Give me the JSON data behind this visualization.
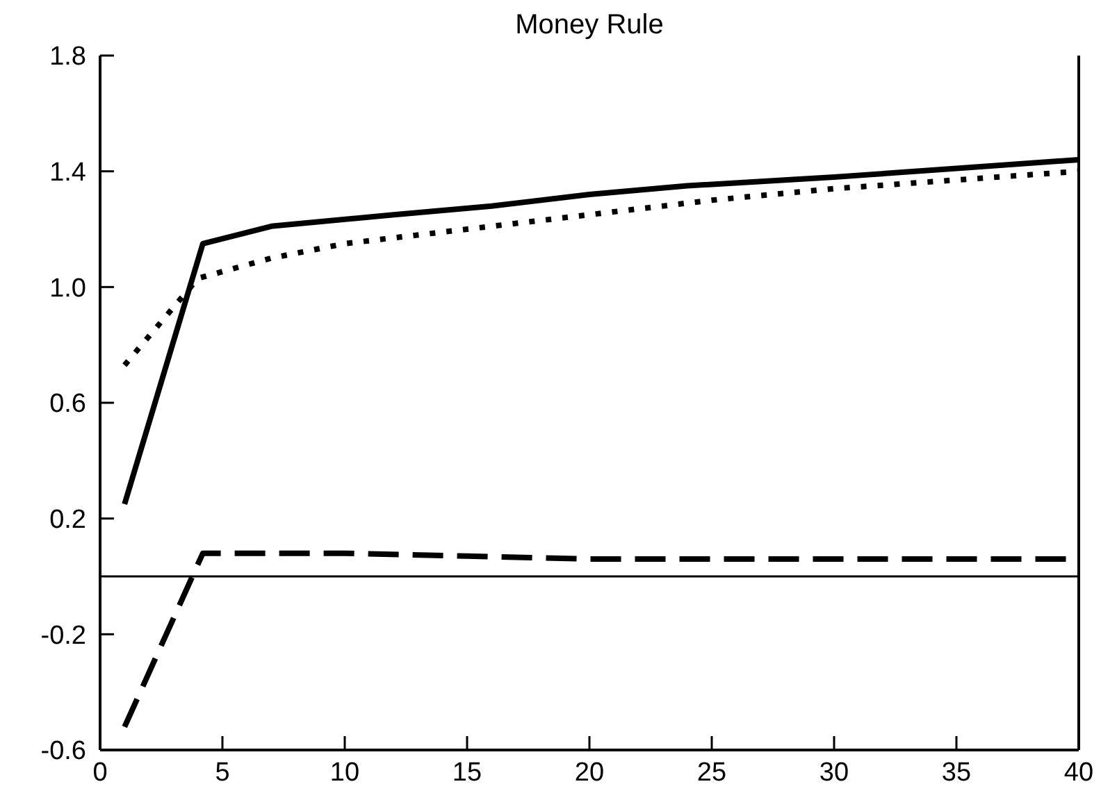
{
  "chart_data": {
    "type": "line",
    "title": "Money Rule",
    "xlim": [
      0,
      40
    ],
    "xticks": [
      0,
      5,
      10,
      15,
      20,
      25,
      30,
      35,
      40
    ],
    "ylim": [
      -0.6,
      1.8
    ],
    "yticks": [
      {
        "value": -0.6,
        "label": "-0.6"
      },
      {
        "value": -0.2,
        "label": "-0.2"
      },
      {
        "value": 0.2,
        "label": "0.2"
      },
      {
        "value": 0.6,
        "label": "0.6"
      },
      {
        "value": 1.0,
        "label": "1.0"
      },
      {
        "value": 1.4,
        "label": "1.4"
      },
      {
        "value": 1.8,
        "label": "1.8"
      }
    ],
    "grid": false,
    "marker": "none",
    "ref_lines": [
      {
        "axis": "y",
        "value": 0,
        "color": "#000000",
        "line_style": "solid"
      }
    ],
    "series": [
      {
        "color": "#000000",
        "line_style": "solid",
        "x": [
          1,
          4.2,
          7,
          12,
          16,
          20,
          24,
          30,
          35,
          40
        ],
        "values": [
          0.25,
          1.15,
          1.21,
          1.25,
          1.28,
          1.32,
          1.35,
          1.38,
          1.41,
          1.44
        ]
      },
      {
        "color": "#000000",
        "line_style": "dotted",
        "x": [
          1,
          4,
          7,
          10,
          15,
          20,
          25,
          30,
          35,
          40
        ],
        "values": [
          0.73,
          1.03,
          1.1,
          1.15,
          1.2,
          1.25,
          1.3,
          1.34,
          1.37,
          1.4
        ]
      },
      {
        "color": "#000000",
        "line_style": "dashed",
        "x": [
          1,
          4.2,
          10,
          15,
          20,
          30,
          40
        ],
        "values": [
          -0.52,
          0.08,
          0.08,
          0.07,
          0.06,
          0.06,
          0.06
        ]
      }
    ]
  }
}
